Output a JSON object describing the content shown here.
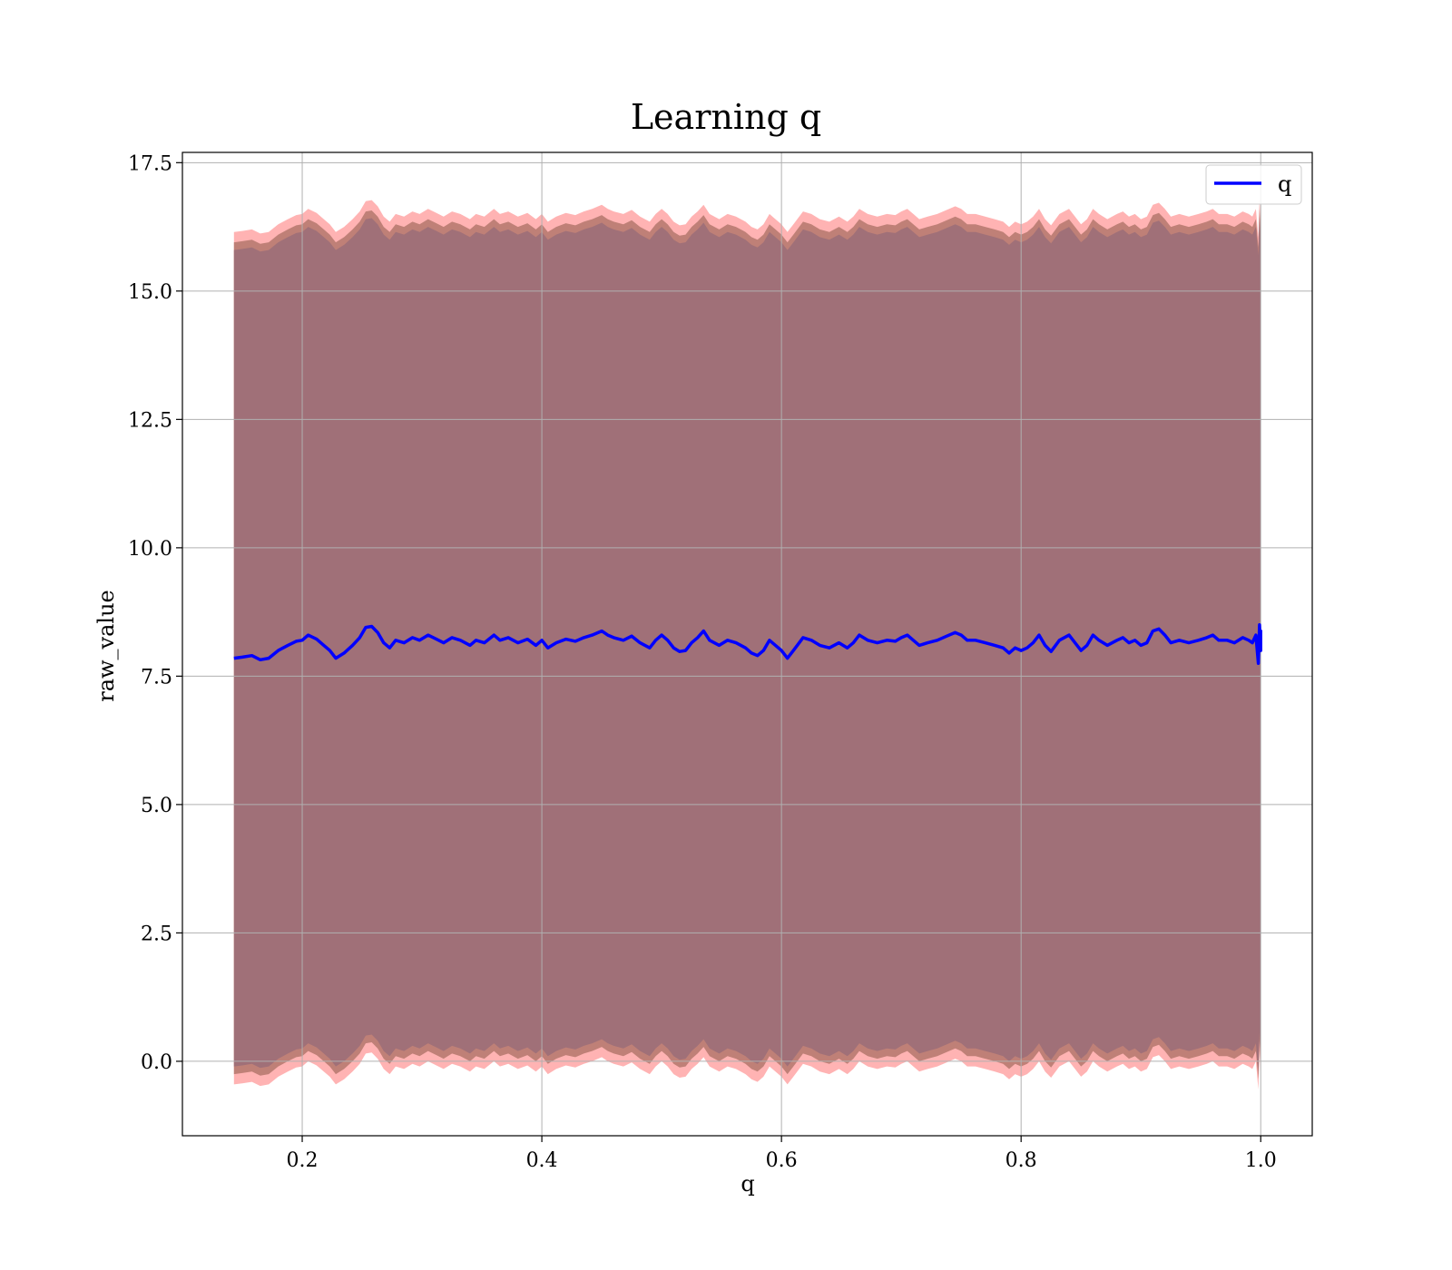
{
  "chart_data": {
    "type": "line",
    "title": "Learning q",
    "xlabel": "q",
    "ylabel": "raw_value",
    "xlim": [
      0.1,
      1.043
    ],
    "ylim": [
      -1.45,
      17.7
    ],
    "xticks": [
      0.2,
      0.4,
      0.6,
      0.8,
      1.0
    ],
    "xtick_labels": [
      "0.2",
      "0.4",
      "0.6",
      "0.8",
      "1.0"
    ],
    "yticks": [
      0.0,
      2.5,
      5.0,
      7.5,
      10.0,
      12.5,
      15.0,
      17.5
    ],
    "ytick_labels": [
      "0.0",
      "2.5",
      "5.0",
      "7.5",
      "10.0",
      "12.5",
      "15.0",
      "17.5"
    ],
    "grid": true,
    "legend": {
      "placement": "top-right",
      "entries": [
        "q"
      ]
    },
    "colors": {
      "line": "#0000ff",
      "band_outer": "#ff8080",
      "band_inner": "#a07078",
      "band_mid": "#b87a70",
      "grid": "#b0b0b0"
    },
    "band_widths": {
      "outer": 8.3,
      "mid": 8.1,
      "inner": 7.95
    },
    "series": [
      {
        "name": "q",
        "x": [
          0.143,
          0.15,
          0.158,
          0.165,
          0.172,
          0.18,
          0.188,
          0.195,
          0.2,
          0.205,
          0.212,
          0.218,
          0.223,
          0.228,
          0.235,
          0.242,
          0.248,
          0.253,
          0.258,
          0.263,
          0.268,
          0.273,
          0.278,
          0.285,
          0.292,
          0.298,
          0.305,
          0.312,
          0.318,
          0.325,
          0.332,
          0.34,
          0.345,
          0.352,
          0.36,
          0.365,
          0.372,
          0.38,
          0.388,
          0.395,
          0.4,
          0.405,
          0.412,
          0.42,
          0.428,
          0.435,
          0.442,
          0.45,
          0.455,
          0.46,
          0.468,
          0.475,
          0.482,
          0.49,
          0.495,
          0.5,
          0.505,
          0.51,
          0.515,
          0.52,
          0.525,
          0.53,
          0.535,
          0.54,
          0.548,
          0.555,
          0.562,
          0.57,
          0.575,
          0.58,
          0.585,
          0.59,
          0.595,
          0.6,
          0.605,
          0.61,
          0.618,
          0.625,
          0.632,
          0.64,
          0.648,
          0.655,
          0.66,
          0.665,
          0.672,
          0.68,
          0.688,
          0.695,
          0.7,
          0.705,
          0.71,
          0.715,
          0.722,
          0.73,
          0.738,
          0.745,
          0.75,
          0.755,
          0.762,
          0.77,
          0.778,
          0.785,
          0.79,
          0.795,
          0.8,
          0.805,
          0.81,
          0.815,
          0.82,
          0.825,
          0.832,
          0.84,
          0.845,
          0.85,
          0.855,
          0.86,
          0.865,
          0.872,
          0.88,
          0.885,
          0.89,
          0.895,
          0.9,
          0.905,
          0.91,
          0.915,
          0.92,
          0.925,
          0.932,
          0.94,
          0.948,
          0.955,
          0.96,
          0.965,
          0.972,
          0.978,
          0.985,
          0.99,
          0.993,
          0.996,
          0.998,
          0.999,
          1.0,
          1.0
        ],
        "y": [
          7.85,
          7.87,
          7.9,
          7.82,
          7.85,
          8.0,
          8.1,
          8.18,
          8.2,
          8.3,
          8.22,
          8.1,
          8.0,
          7.85,
          7.95,
          8.1,
          8.25,
          8.45,
          8.47,
          8.35,
          8.15,
          8.05,
          8.2,
          8.15,
          8.25,
          8.2,
          8.3,
          8.22,
          8.15,
          8.25,
          8.2,
          8.1,
          8.2,
          8.15,
          8.3,
          8.2,
          8.25,
          8.15,
          8.22,
          8.1,
          8.2,
          8.05,
          8.15,
          8.22,
          8.18,
          8.25,
          8.3,
          8.38,
          8.3,
          8.25,
          8.2,
          8.28,
          8.15,
          8.05,
          8.2,
          8.3,
          8.2,
          8.05,
          7.98,
          8.0,
          8.15,
          8.25,
          8.38,
          8.2,
          8.1,
          8.2,
          8.15,
          8.05,
          7.95,
          7.9,
          8.0,
          8.2,
          8.1,
          8.0,
          7.85,
          8.0,
          8.25,
          8.2,
          8.1,
          8.05,
          8.15,
          8.05,
          8.15,
          8.3,
          8.2,
          8.15,
          8.2,
          8.18,
          8.25,
          8.3,
          8.2,
          8.1,
          8.15,
          8.2,
          8.28,
          8.35,
          8.3,
          8.2,
          8.2,
          8.15,
          8.1,
          8.05,
          7.95,
          8.05,
          8.0,
          8.05,
          8.15,
          8.3,
          8.1,
          7.98,
          8.2,
          8.3,
          8.15,
          8.0,
          8.1,
          8.3,
          8.2,
          8.1,
          8.2,
          8.25,
          8.15,
          8.2,
          8.1,
          8.15,
          8.38,
          8.42,
          8.3,
          8.15,
          8.2,
          8.15,
          8.2,
          8.25,
          8.3,
          8.2,
          8.2,
          8.15,
          8.25,
          8.2,
          8.15,
          8.3,
          7.75,
          8.5,
          8.0,
          8.4
        ]
      }
    ]
  }
}
